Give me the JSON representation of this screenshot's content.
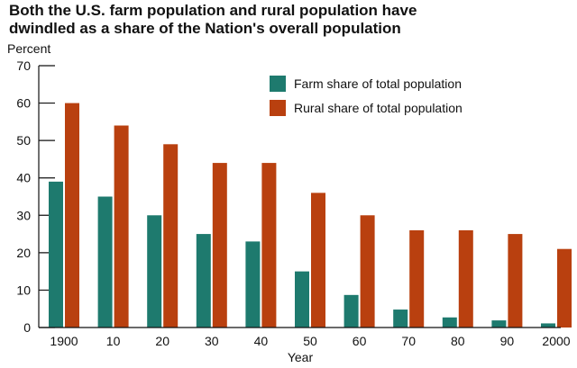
{
  "chart_data": {
    "type": "bar",
    "title_lines": [
      "Both the U.S. farm population and rural population have",
      "dwindled as a share of the Nation's overall population"
    ],
    "ylabel": "Percent",
    "xlabel": "Year",
    "ylim": [
      0,
      70
    ],
    "yticks": [
      0,
      10,
      20,
      30,
      40,
      50,
      60,
      70
    ],
    "categories": [
      "1900",
      "10",
      "20",
      "30",
      "40",
      "50",
      "60",
      "70",
      "80",
      "90",
      "2000"
    ],
    "series": [
      {
        "name": "Farm share of total population",
        "color": "#1e7a6e",
        "values": [
          39,
          35,
          30,
          25,
          23,
          15,
          8.7,
          4.8,
          2.7,
          1.9,
          1.1
        ]
      },
      {
        "name": "Rural share of total population",
        "color": "#b9400f",
        "values": [
          60,
          54,
          49,
          44,
          44,
          36,
          30,
          26,
          26,
          25,
          21
        ]
      }
    ],
    "legend_position": "top-right",
    "grid": false
  }
}
